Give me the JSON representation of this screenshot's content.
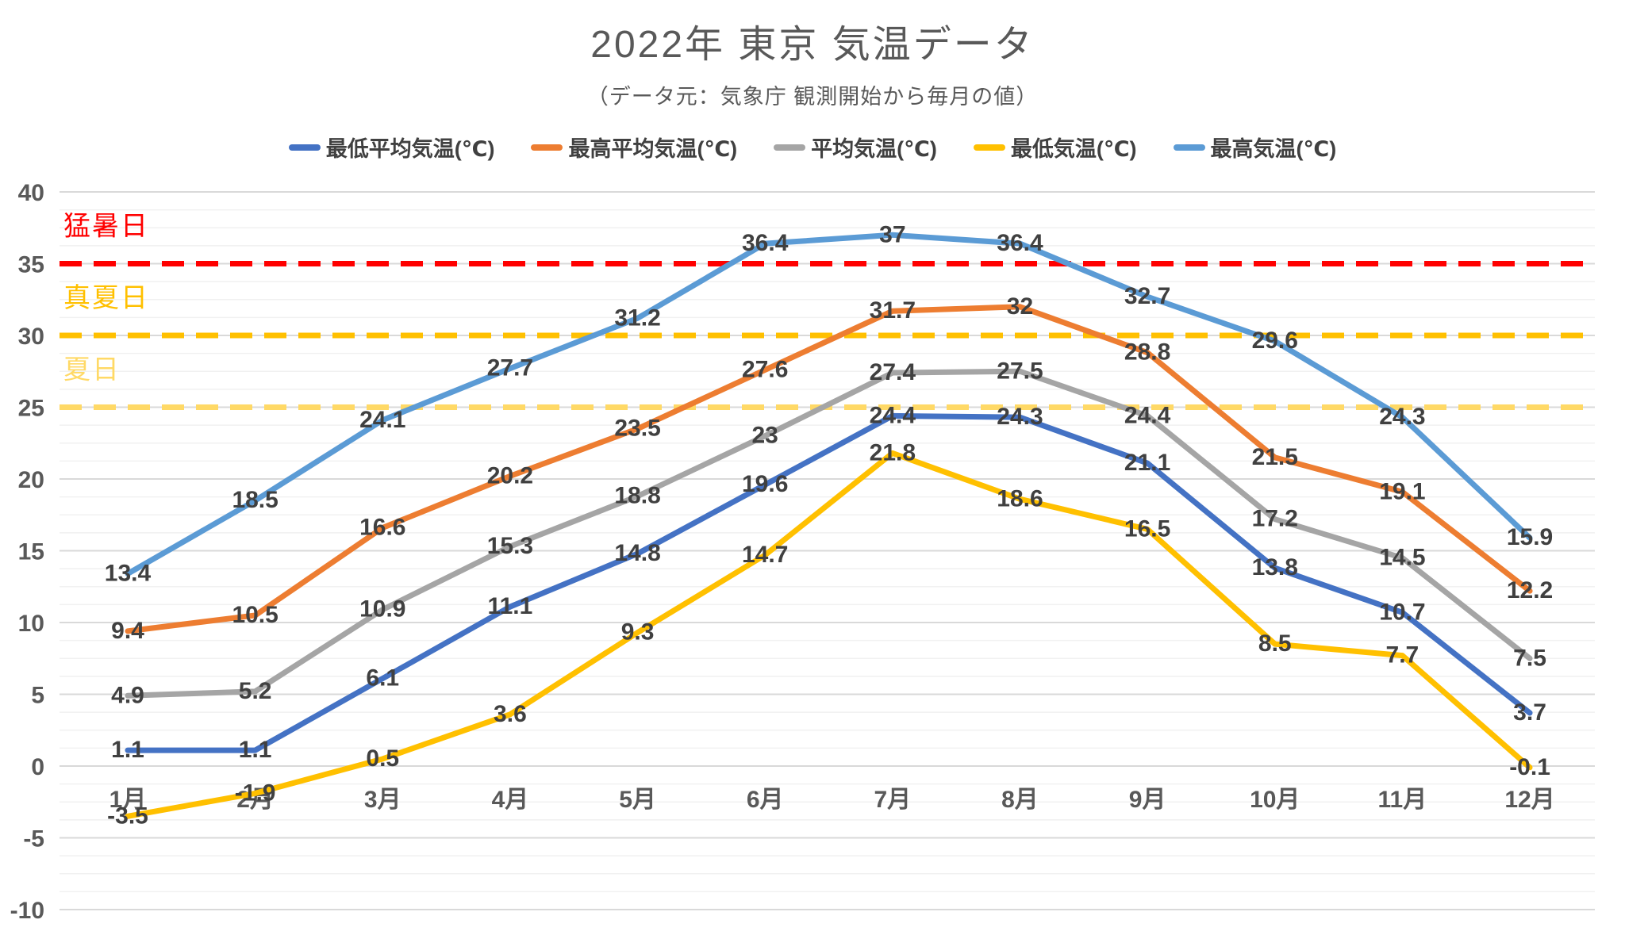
{
  "chart_data": {
    "type": "line",
    "title": "2022年 東京 気温データ",
    "subtitle": "（データ元：気象庁 観測開始から毎月の値）",
    "categories": [
      "1月",
      "2月",
      "3月",
      "4月",
      "5月",
      "6月",
      "7月",
      "8月",
      "9月",
      "10月",
      "11月",
      "12月"
    ],
    "series": [
      {
        "key": "min-avg",
        "name": "最低平均気温(℃)",
        "color": "#4472C4",
        "values": [
          1.1,
          1.1,
          6.1,
          11.1,
          14.8,
          19.6,
          24.4,
          24.3,
          21.1,
          13.8,
          10.7,
          3.7
        ]
      },
      {
        "key": "max-avg",
        "name": "最高平均気温(℃)",
        "color": "#ED7D31",
        "values": [
          9.4,
          10.5,
          16.6,
          20.2,
          23.5,
          27.6,
          31.7,
          32,
          28.8,
          21.5,
          19.1,
          12.2
        ]
      },
      {
        "key": "avg",
        "name": "平均気温(℃)",
        "color": "#A5A5A5",
        "values": [
          4.9,
          5.2,
          10.9,
          15.3,
          18.8,
          23,
          27.4,
          27.5,
          24.4,
          17.2,
          14.5,
          7.5
        ]
      },
      {
        "key": "min",
        "name": "最低気温(℃)",
        "color": "#FFC000",
        "values": [
          -3.5,
          -1.9,
          0.5,
          3.6,
          9.3,
          14.7,
          21.8,
          18.6,
          16.5,
          8.5,
          7.7,
          -0.1
        ]
      },
      {
        "key": "max",
        "name": "最高気温(℃)",
        "color": "#5B9BD5",
        "values": [
          13.4,
          18.5,
          24.1,
          27.7,
          31.2,
          36.4,
          37,
          36.4,
          32.7,
          29.6,
          24.3,
          15.9
        ]
      }
    ],
    "reference_lines": [
      {
        "key": "extreme-heat-day",
        "label": "猛暑日",
        "value": 35,
        "color": "#FF0000"
      },
      {
        "key": "midsummer-day",
        "label": "真夏日",
        "value": 30,
        "color": "#FFC000"
      },
      {
        "key": "summer-day",
        "label": "夏日",
        "value": 25,
        "color": "#FFD966"
      }
    ],
    "y_axis": {
      "min": -10,
      "max": 40,
      "major_step": 5,
      "minor_divisions": 4,
      "tick_labels": [
        "-10",
        "-5",
        "0",
        "5",
        "10",
        "15",
        "20",
        "25",
        "30",
        "35",
        "40"
      ]
    },
    "legend_position": "top",
    "grid": true,
    "colors": {
      "title_text": "#595959",
      "axis_text": "#595959",
      "data_label_text": "#404040",
      "major_grid": "#D9D9D9",
      "minor_grid": "#F1F1F1",
      "background": "#FFFFFF"
    }
  }
}
